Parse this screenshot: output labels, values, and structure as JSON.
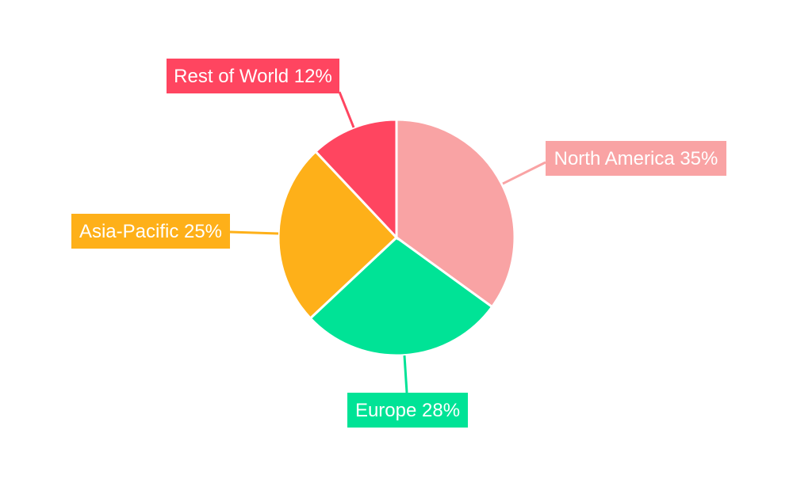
{
  "chart_data": {
    "type": "pie",
    "start_angle": "12 o'clock, clockwise",
    "categories": [
      "North America",
      "Europe",
      "Asia-Pacific",
      "Rest of World"
    ],
    "values": [
      35,
      28,
      25,
      12
    ],
    "labels": [
      "North America 35%",
      "Europe 28%",
      "Asia-Pacific 25%",
      "Rest of World 12%"
    ],
    "colors": [
      "#f9a3a4",
      "#00e396",
      "#feb019",
      "#ff4560"
    ],
    "legend": "none"
  }
}
